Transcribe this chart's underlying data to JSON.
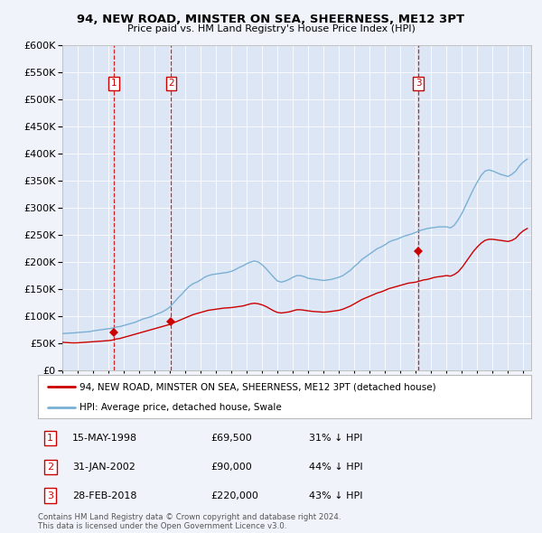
{
  "title": "94, NEW ROAD, MINSTER ON SEA, SHEERNESS, ME12 3PT",
  "subtitle": "Price paid vs. HM Land Registry's House Price Index (HPI)",
  "ylim": [
    0,
    600000
  ],
  "xlim_start": 1995.0,
  "xlim_end": 2025.5,
  "background_color": "#f0f4fa",
  "plot_bg_color": "#dce6f5",
  "red_line_color": "#cc0000",
  "blue_line_color": "#7ab0d4",
  "sale_points": [
    {
      "date_num": 1998.37,
      "price": 69500,
      "label": "1"
    },
    {
      "date_num": 2002.08,
      "price": 90000,
      "label": "2"
    },
    {
      "date_num": 2018.17,
      "price": 220000,
      "label": "3"
    }
  ],
  "hpi_data": [
    [
      1995.0,
      68000
    ],
    [
      1995.25,
      68500
    ],
    [
      1995.5,
      69000
    ],
    [
      1995.75,
      69200
    ],
    [
      1996.0,
      70000
    ],
    [
      1996.25,
      70500
    ],
    [
      1996.5,
      71000
    ],
    [
      1996.75,
      71500
    ],
    [
      1997.0,
      73000
    ],
    [
      1997.25,
      74000
    ],
    [
      1997.5,
      75000
    ],
    [
      1997.75,
      76000
    ],
    [
      1998.0,
      77000
    ],
    [
      1998.25,
      78000
    ],
    [
      1998.5,
      80000
    ],
    [
      1998.75,
      81000
    ],
    [
      1999.0,
      83000
    ],
    [
      1999.25,
      85000
    ],
    [
      1999.5,
      87000
    ],
    [
      1999.75,
      89000
    ],
    [
      2000.0,
      92000
    ],
    [
      2000.25,
      95000
    ],
    [
      2000.5,
      97000
    ],
    [
      2000.75,
      99000
    ],
    [
      2001.0,
      102000
    ],
    [
      2001.25,
      105000
    ],
    [
      2001.5,
      108000
    ],
    [
      2001.75,
      112000
    ],
    [
      2002.0,
      117000
    ],
    [
      2002.25,
      125000
    ],
    [
      2002.5,
      133000
    ],
    [
      2002.75,
      140000
    ],
    [
      2003.0,
      148000
    ],
    [
      2003.25,
      155000
    ],
    [
      2003.5,
      160000
    ],
    [
      2003.75,
      163000
    ],
    [
      2004.0,
      167000
    ],
    [
      2004.25,
      172000
    ],
    [
      2004.5,
      175000
    ],
    [
      2004.75,
      177000
    ],
    [
      2005.0,
      178000
    ],
    [
      2005.25,
      179000
    ],
    [
      2005.5,
      180000
    ],
    [
      2005.75,
      181000
    ],
    [
      2006.0,
      183000
    ],
    [
      2006.25,
      186000
    ],
    [
      2006.5,
      190000
    ],
    [
      2006.75,
      193000
    ],
    [
      2007.0,
      197000
    ],
    [
      2007.25,
      200000
    ],
    [
      2007.5,
      202000
    ],
    [
      2007.75,
      200000
    ],
    [
      2008.0,
      195000
    ],
    [
      2008.25,
      188000
    ],
    [
      2008.5,
      180000
    ],
    [
      2008.75,
      172000
    ],
    [
      2009.0,
      165000
    ],
    [
      2009.25,
      163000
    ],
    [
      2009.5,
      165000
    ],
    [
      2009.75,
      168000
    ],
    [
      2010.0,
      172000
    ],
    [
      2010.25,
      175000
    ],
    [
      2010.5,
      175000
    ],
    [
      2010.75,
      173000
    ],
    [
      2011.0,
      170000
    ],
    [
      2011.25,
      169000
    ],
    [
      2011.5,
      168000
    ],
    [
      2011.75,
      167000
    ],
    [
      2012.0,
      166000
    ],
    [
      2012.25,
      167000
    ],
    [
      2012.5,
      168000
    ],
    [
      2012.75,
      170000
    ],
    [
      2013.0,
      172000
    ],
    [
      2013.25,
      175000
    ],
    [
      2013.5,
      180000
    ],
    [
      2013.75,
      185000
    ],
    [
      2014.0,
      192000
    ],
    [
      2014.25,
      198000
    ],
    [
      2014.5,
      205000
    ],
    [
      2014.75,
      210000
    ],
    [
      2015.0,
      215000
    ],
    [
      2015.25,
      220000
    ],
    [
      2015.5,
      225000
    ],
    [
      2015.75,
      228000
    ],
    [
      2016.0,
      232000
    ],
    [
      2016.25,
      237000
    ],
    [
      2016.5,
      240000
    ],
    [
      2016.75,
      242000
    ],
    [
      2017.0,
      245000
    ],
    [
      2017.25,
      248000
    ],
    [
      2017.5,
      250000
    ],
    [
      2017.75,
      252000
    ],
    [
      2018.0,
      255000
    ],
    [
      2018.25,
      258000
    ],
    [
      2018.5,
      260000
    ],
    [
      2018.75,
      262000
    ],
    [
      2019.0,
      263000
    ],
    [
      2019.25,
      264000
    ],
    [
      2019.5,
      265000
    ],
    [
      2019.75,
      265000
    ],
    [
      2020.0,
      265000
    ],
    [
      2020.25,
      263000
    ],
    [
      2020.5,
      268000
    ],
    [
      2020.75,
      278000
    ],
    [
      2021.0,
      290000
    ],
    [
      2021.25,
      305000
    ],
    [
      2021.5,
      320000
    ],
    [
      2021.75,
      335000
    ],
    [
      2022.0,
      348000
    ],
    [
      2022.25,
      360000
    ],
    [
      2022.5,
      368000
    ],
    [
      2022.75,
      370000
    ],
    [
      2023.0,
      368000
    ],
    [
      2023.25,
      365000
    ],
    [
      2023.5,
      362000
    ],
    [
      2023.75,
      360000
    ],
    [
      2024.0,
      358000
    ],
    [
      2024.25,
      362000
    ],
    [
      2024.5,
      368000
    ],
    [
      2024.75,
      378000
    ],
    [
      2025.0,
      385000
    ],
    [
      2025.25,
      390000
    ]
  ],
  "price_data": [
    [
      1995.0,
      52000
    ],
    [
      1995.25,
      51500
    ],
    [
      1995.5,
      51000
    ],
    [
      1995.75,
      50800
    ],
    [
      1996.0,
      51000
    ],
    [
      1996.25,
      51500
    ],
    [
      1996.5,
      52000
    ],
    [
      1996.75,
      52500
    ],
    [
      1997.0,
      53000
    ],
    [
      1997.25,
      53500
    ],
    [
      1997.5,
      54000
    ],
    [
      1997.75,
      54500
    ],
    [
      1998.0,
      55000
    ],
    [
      1998.25,
      56000
    ],
    [
      1998.5,
      58000
    ],
    [
      1998.75,
      59000
    ],
    [
      1999.0,
      61000
    ],
    [
      1999.25,
      63000
    ],
    [
      1999.5,
      65000
    ],
    [
      1999.75,
      67000
    ],
    [
      2000.0,
      69000
    ],
    [
      2000.25,
      71000
    ],
    [
      2000.5,
      73000
    ],
    [
      2000.75,
      75000
    ],
    [
      2001.0,
      77000
    ],
    [
      2001.25,
      79000
    ],
    [
      2001.5,
      81000
    ],
    [
      2001.75,
      83000
    ],
    [
      2002.0,
      85000
    ],
    [
      2002.25,
      88000
    ],
    [
      2002.5,
      91000
    ],
    [
      2002.75,
      94000
    ],
    [
      2003.0,
      97000
    ],
    [
      2003.25,
      100000
    ],
    [
      2003.5,
      103000
    ],
    [
      2003.75,
      105000
    ],
    [
      2004.0,
      107000
    ],
    [
      2004.25,
      109000
    ],
    [
      2004.5,
      111000
    ],
    [
      2004.75,
      112000
    ],
    [
      2005.0,
      113000
    ],
    [
      2005.25,
      114000
    ],
    [
      2005.5,
      115000
    ],
    [
      2005.75,
      115500
    ],
    [
      2006.0,
      116000
    ],
    [
      2006.25,
      117000
    ],
    [
      2006.5,
      118000
    ],
    [
      2006.75,
      119000
    ],
    [
      2007.0,
      121000
    ],
    [
      2007.25,
      123000
    ],
    [
      2007.5,
      124000
    ],
    [
      2007.75,
      123000
    ],
    [
      2008.0,
      121000
    ],
    [
      2008.25,
      118000
    ],
    [
      2008.5,
      114000
    ],
    [
      2008.75,
      110000
    ],
    [
      2009.0,
      107000
    ],
    [
      2009.25,
      106000
    ],
    [
      2009.5,
      107000
    ],
    [
      2009.75,
      108000
    ],
    [
      2010.0,
      110000
    ],
    [
      2010.25,
      112000
    ],
    [
      2010.5,
      112000
    ],
    [
      2010.75,
      111000
    ],
    [
      2011.0,
      110000
    ],
    [
      2011.25,
      109000
    ],
    [
      2011.5,
      108500
    ],
    [
      2011.75,
      108000
    ],
    [
      2012.0,
      107500
    ],
    [
      2012.25,
      108000
    ],
    [
      2012.5,
      109000
    ],
    [
      2012.75,
      110000
    ],
    [
      2013.0,
      111000
    ],
    [
      2013.25,
      113000
    ],
    [
      2013.5,
      116000
    ],
    [
      2013.75,
      119000
    ],
    [
      2014.0,
      123000
    ],
    [
      2014.25,
      127000
    ],
    [
      2014.5,
      131000
    ],
    [
      2014.75,
      134000
    ],
    [
      2015.0,
      137000
    ],
    [
      2015.25,
      140000
    ],
    [
      2015.5,
      143000
    ],
    [
      2015.75,
      145000
    ],
    [
      2016.0,
      148000
    ],
    [
      2016.25,
      151000
    ],
    [
      2016.5,
      153000
    ],
    [
      2016.75,
      155000
    ],
    [
      2017.0,
      157000
    ],
    [
      2017.25,
      159000
    ],
    [
      2017.5,
      161000
    ],
    [
      2017.75,
      162000
    ],
    [
      2018.0,
      163000
    ],
    [
      2018.25,
      165000
    ],
    [
      2018.5,
      167000
    ],
    [
      2018.75,
      168000
    ],
    [
      2019.0,
      170000
    ],
    [
      2019.25,
      172000
    ],
    [
      2019.5,
      173000
    ],
    [
      2019.75,
      174000
    ],
    [
      2020.0,
      175000
    ],
    [
      2020.25,
      174000
    ],
    [
      2020.5,
      177000
    ],
    [
      2020.75,
      182000
    ],
    [
      2021.0,
      190000
    ],
    [
      2021.25,
      200000
    ],
    [
      2021.5,
      210000
    ],
    [
      2021.75,
      220000
    ],
    [
      2022.0,
      228000
    ],
    [
      2022.25,
      235000
    ],
    [
      2022.5,
      240000
    ],
    [
      2022.75,
      242000
    ],
    [
      2023.0,
      242000
    ],
    [
      2023.25,
      241000
    ],
    [
      2023.5,
      240000
    ],
    [
      2023.75,
      239000
    ],
    [
      2024.0,
      238000
    ],
    [
      2024.25,
      240000
    ],
    [
      2024.5,
      244000
    ],
    [
      2024.75,
      252000
    ],
    [
      2025.0,
      258000
    ],
    [
      2025.25,
      262000
    ]
  ],
  "legend_entries": [
    {
      "color": "#cc0000",
      "label": "94, NEW ROAD, MINSTER ON SEA, SHEERNESS, ME12 3PT (detached house)"
    },
    {
      "color": "#7ab0d4",
      "label": "HPI: Average price, detached house, Swale"
    }
  ],
  "table_rows": [
    {
      "num": "1",
      "date": "15-MAY-1998",
      "price": "£69,500",
      "note": "31% ↓ HPI"
    },
    {
      "num": "2",
      "date": "31-JAN-2002",
      "price": "£90,000",
      "note": "44% ↓ HPI"
    },
    {
      "num": "3",
      "date": "28-FEB-2018",
      "price": "£220,000",
      "note": "43% ↓ HPI"
    }
  ],
  "footnote": "Contains HM Land Registry data © Crown copyright and database right 2024.\nThis data is licensed under the Open Government Licence v3.0."
}
